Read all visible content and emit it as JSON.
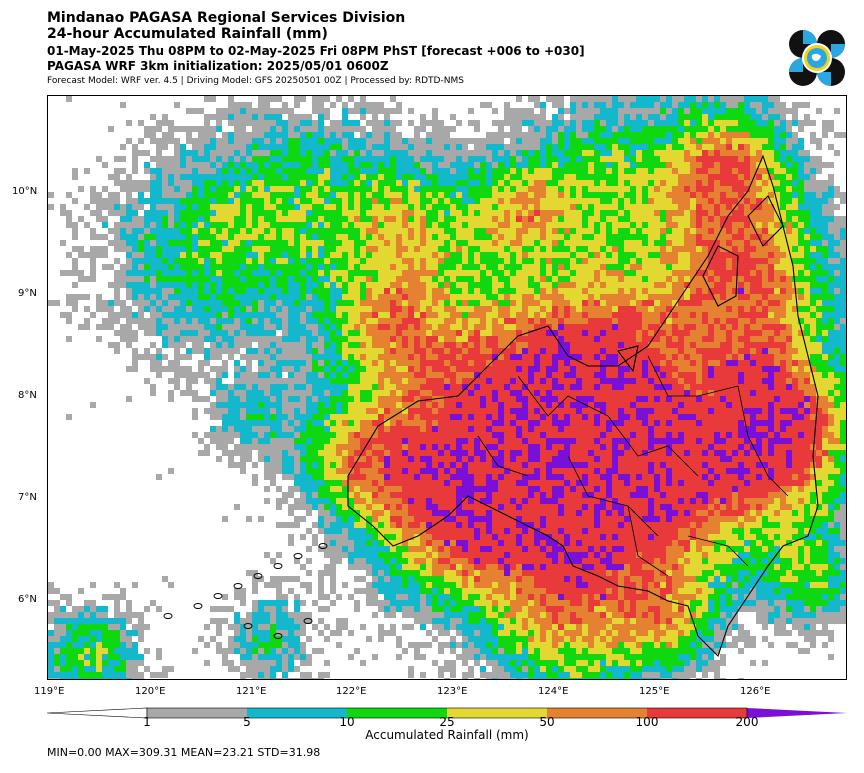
{
  "header": {
    "line1": "Mindanao PAGASA Regional Services Division",
    "line2": "24-hour Accumulated Rainfall (mm)",
    "line3": "01-May-2025 Thu 08PM to 02-May-2025 Fri 08PM PhST [forecast +006 to +030]",
    "line4": "PAGASA WRF 3km initialization: 2025/05/01 0600Z",
    "line5": "Forecast Model: WRF ver. 4.5 | Driving Model: GFS 20250501 00Z | Processed by: RDTD-NMS"
  },
  "logo": {
    "name": "pagasa-logo",
    "colors": [
      "#111111",
      "#2aa7e0",
      "#f2d21b"
    ]
  },
  "map": {
    "lat_ticks": [
      "10°N",
      "9°N",
      "8°N",
      "7°N",
      "6°N"
    ],
    "lon_ticks": [
      "119°E",
      "120°E",
      "121°E",
      "122°E",
      "123°E",
      "124°E",
      "125°E",
      "126°E"
    ]
  },
  "colorbar": {
    "title": "Accumulated Rainfall (mm)",
    "levels": [
      "1",
      "5",
      "10",
      "25",
      "50",
      "100",
      "200"
    ],
    "colors": [
      "#ffffff",
      "#a8a8a8",
      "#13b8cc",
      "#10d810",
      "#e2d831",
      "#e58232",
      "#e83a3a",
      "#7a10d8"
    ]
  },
  "stats": "MIN=0.00   MAX=309.31   MEAN=23.21   STD=31.98"
}
